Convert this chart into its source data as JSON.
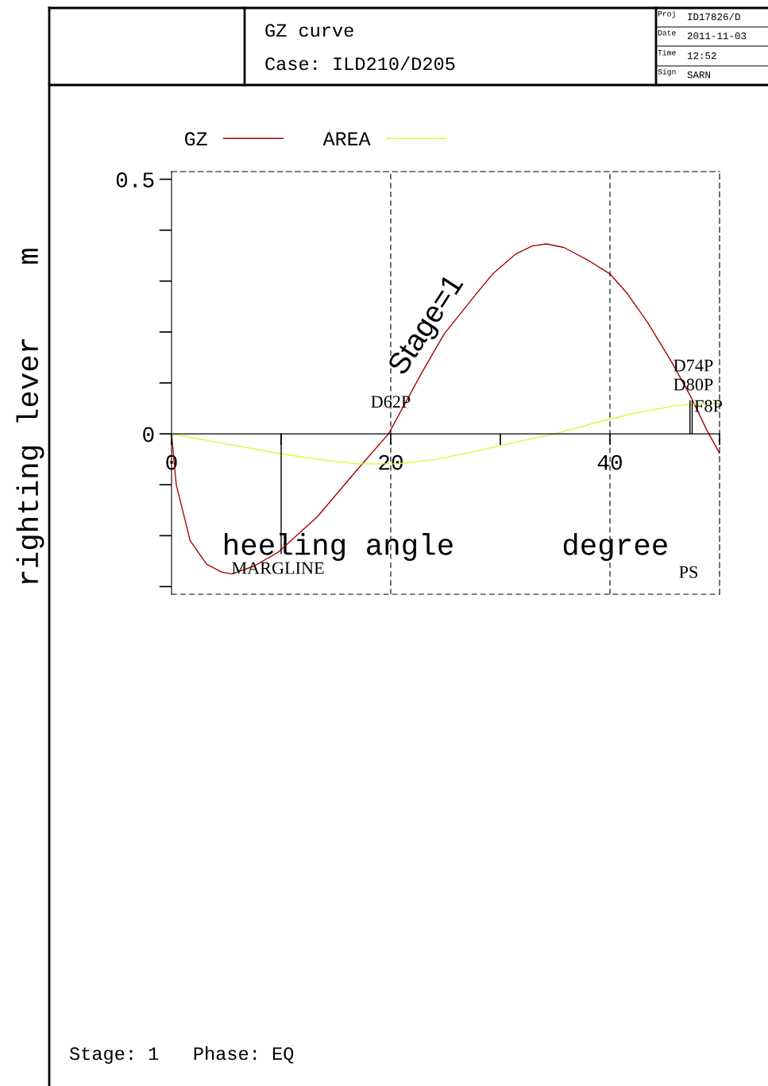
{
  "chart_data": {
    "type": "line",
    "title": "GZ curve",
    "subtitle": "Case: ILD210/D205",
    "xlabel": "heeling angle      degree",
    "ylabel": "righting lever    m",
    "x": [
      0,
      0.43,
      1.7,
      3.2,
      4.6,
      5.5,
      7.5,
      9.7,
      13.3,
      17,
      19.8,
      22.8,
      24.9,
      27.8,
      29.3,
      31.4,
      32.9,
      34.2,
      35.8,
      38,
      40,
      41.6,
      43.4,
      45.6,
      47.4,
      48.8,
      50
    ],
    "series": [
      {
        "name": "GZ",
        "color": "#aa0000",
        "values": [
          0,
          -0.1,
          -0.21,
          -0.256,
          -0.272,
          -0.275,
          -0.26,
          -0.233,
          -0.163,
          -0.069,
          0,
          0.119,
          0.197,
          0.275,
          0.314,
          0.353,
          0.369,
          0.373,
          0.366,
          0.341,
          0.314,
          0.275,
          0.22,
          0.142,
          0.072,
          0.009,
          -0.038
        ]
      },
      {
        "name": "AREA",
        "color": "#ccff33",
        "x": [
          0,
          5,
          9.7,
          13.3,
          17,
          20.6,
          24.2,
          27.8,
          31.4,
          35,
          38.7,
          42.3,
          45.9,
          48.1,
          50
        ],
        "values": [
          0,
          -0.02,
          -0.038,
          -0.05,
          -0.059,
          -0.059,
          -0.05,
          -0.034,
          -0.016,
          0,
          0.022,
          0.041,
          0.055,
          0.059,
          0.059
        ]
      },
      {
        "type": "line",
        "color": "#000000",
        "x": [
          10,
          10
        ],
        "values": [
          0,
          -0.235
        ]
      },
      {
        "type": "line",
        "color": "#000000",
        "x": [
          47.3,
          47.3
        ],
        "values": [
          0,
          0.065
        ]
      },
      {
        "type": "line",
        "color": "#000000",
        "x": [
          47.5,
          47.5
        ],
        "values": [
          0,
          0.065
        ]
      }
    ],
    "xlim": [
      0,
      50
    ],
    "xticks": [
      0,
      {
        "value": 10,
        "label": null
      },
      20,
      {
        "value": 30,
        "label": null
      },
      40,
      {
        "value": 50,
        "label": null
      }
    ],
    "ylim": [
      -0.315,
      0.515
    ],
    "yticks": [
      {
        "value": -0.3,
        "label": null
      },
      {
        "value": -0.2,
        "label": null
      },
      {
        "value": -0.1,
        "label": null
      },
      0,
      {
        "value": 0.1,
        "label": null
      },
      {
        "value": 0.2,
        "label": null
      },
      {
        "value": 0.3,
        "label": null
      },
      {
        "value": 0.4,
        "label": null
      },
      0.5
    ],
    "ref_lines": [
      {
        "axis": "x",
        "value": 20,
        "label": null,
        "line_style": "dashed",
        "color": "#000000"
      },
      {
        "axis": "x",
        "value": 40,
        "label": null,
        "line_style": "dashed",
        "color": "#000000"
      }
    ],
    "legend": "top left",
    "grid": false,
    "marker": "none",
    "line_style": "solid",
    "annotations": [
      "Proj",
      "ID17826/D",
      "Date",
      "2011-11-03",
      "Time",
      "12:52",
      "Sign",
      "SARN",
      "Stage: 1   Phase: EQ",
      "Stage=1",
      "D74P",
      "D80P",
      "F8P",
      "MARGLINE",
      "PS",
      {
        "text": "D62P",
        "x": 20,
        "y": 0.06
      }
    ]
  }
}
